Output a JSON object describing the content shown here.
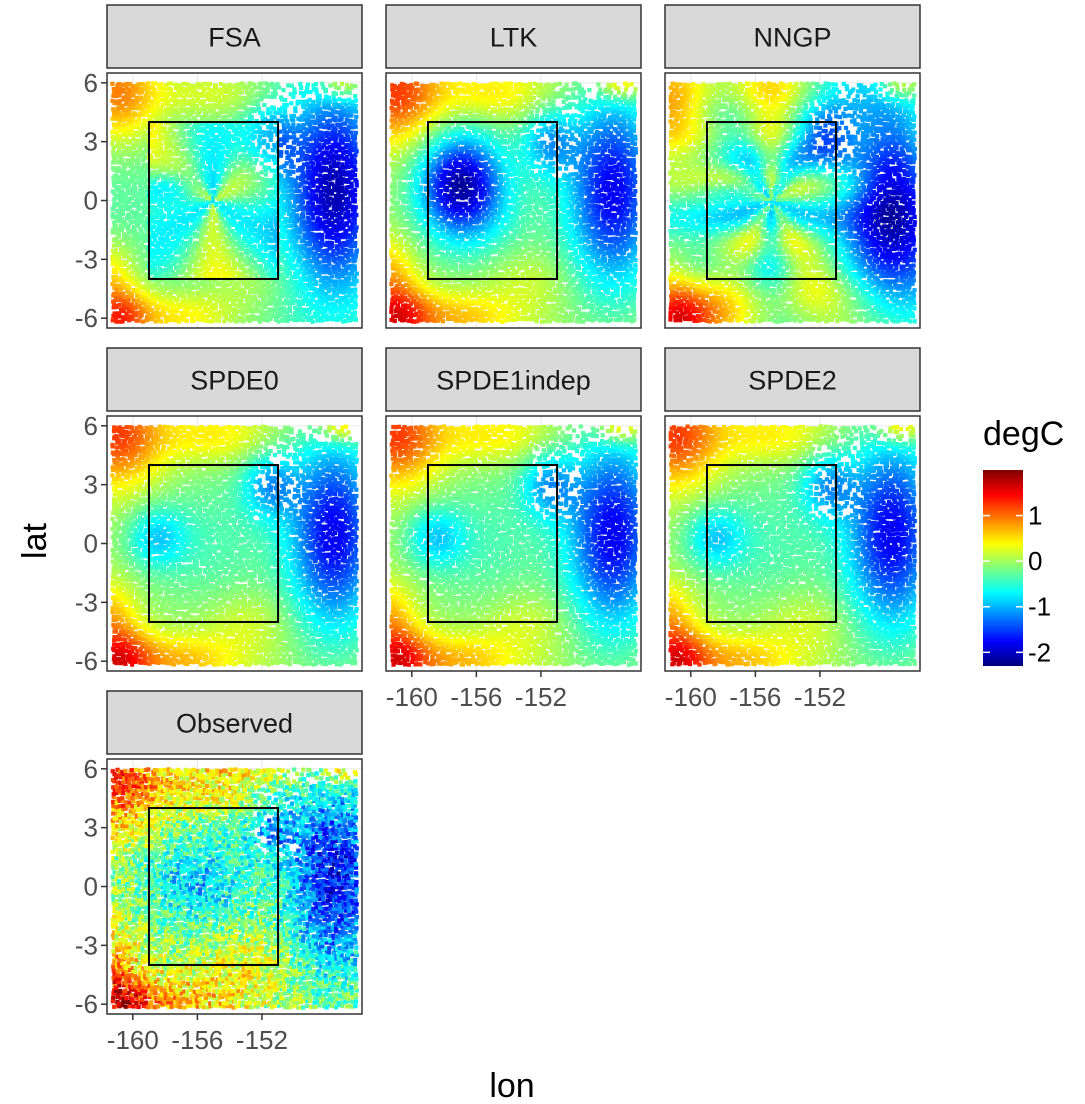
{
  "chart_data": {
    "type": "heatmap",
    "xlabel": "lon",
    "ylabel": "lat",
    "xlim": [
      -161.6,
      -145.8
    ],
    "ylim": [
      -6.5,
      6.5
    ],
    "x_ticks": [
      -160,
      -156,
      -152
    ],
    "x_tick_labels": [
      "-160",
      "-156",
      "-152"
    ],
    "y_ticks": [
      6,
      3,
      0,
      -3,
      -6
    ],
    "y_tick_labels": [
      "6",
      "3",
      "0",
      "-3",
      "-6"
    ],
    "box": {
      "lon": [
        -159,
        -151
      ],
      "lat": [
        -4,
        4
      ]
    },
    "legend": {
      "title": "degC",
      "placement": "right",
      "range": [
        -2.3,
        2.0
      ],
      "ticks": [
        1,
        0,
        -1,
        -2
      ],
      "tick_labels": [
        "1",
        "0",
        "-1",
        "-2"
      ],
      "colors": [
        "#00007f",
        "#0000ff",
        "#007fff",
        "#00ffff",
        "#7fff7f",
        "#ffff00",
        "#ff7f00",
        "#ff0000",
        "#7f0000"
      ]
    },
    "grid": true,
    "panels": [
      {
        "label": "FSA",
        "pattern": "fsa",
        "x_axis_labels": false,
        "y_axis_labels": true
      },
      {
        "label": "LTK",
        "pattern": "ltk",
        "x_axis_labels": false,
        "y_axis_labels": false
      },
      {
        "label": "NNGP",
        "pattern": "nngp",
        "x_axis_labels": false,
        "y_axis_labels": false
      },
      {
        "label": "SPDE0",
        "pattern": "spde",
        "x_axis_labels": false,
        "y_axis_labels": true
      },
      {
        "label": "SPDE1indep",
        "pattern": "spde",
        "x_axis_labels": true,
        "y_axis_labels": false
      },
      {
        "label": "SPDE2",
        "pattern": "spde",
        "x_axis_labels": true,
        "y_axis_labels": false
      },
      {
        "label": "Observed",
        "pattern": "observed",
        "x_axis_labels": true,
        "y_axis_labels": true
      }
    ]
  }
}
